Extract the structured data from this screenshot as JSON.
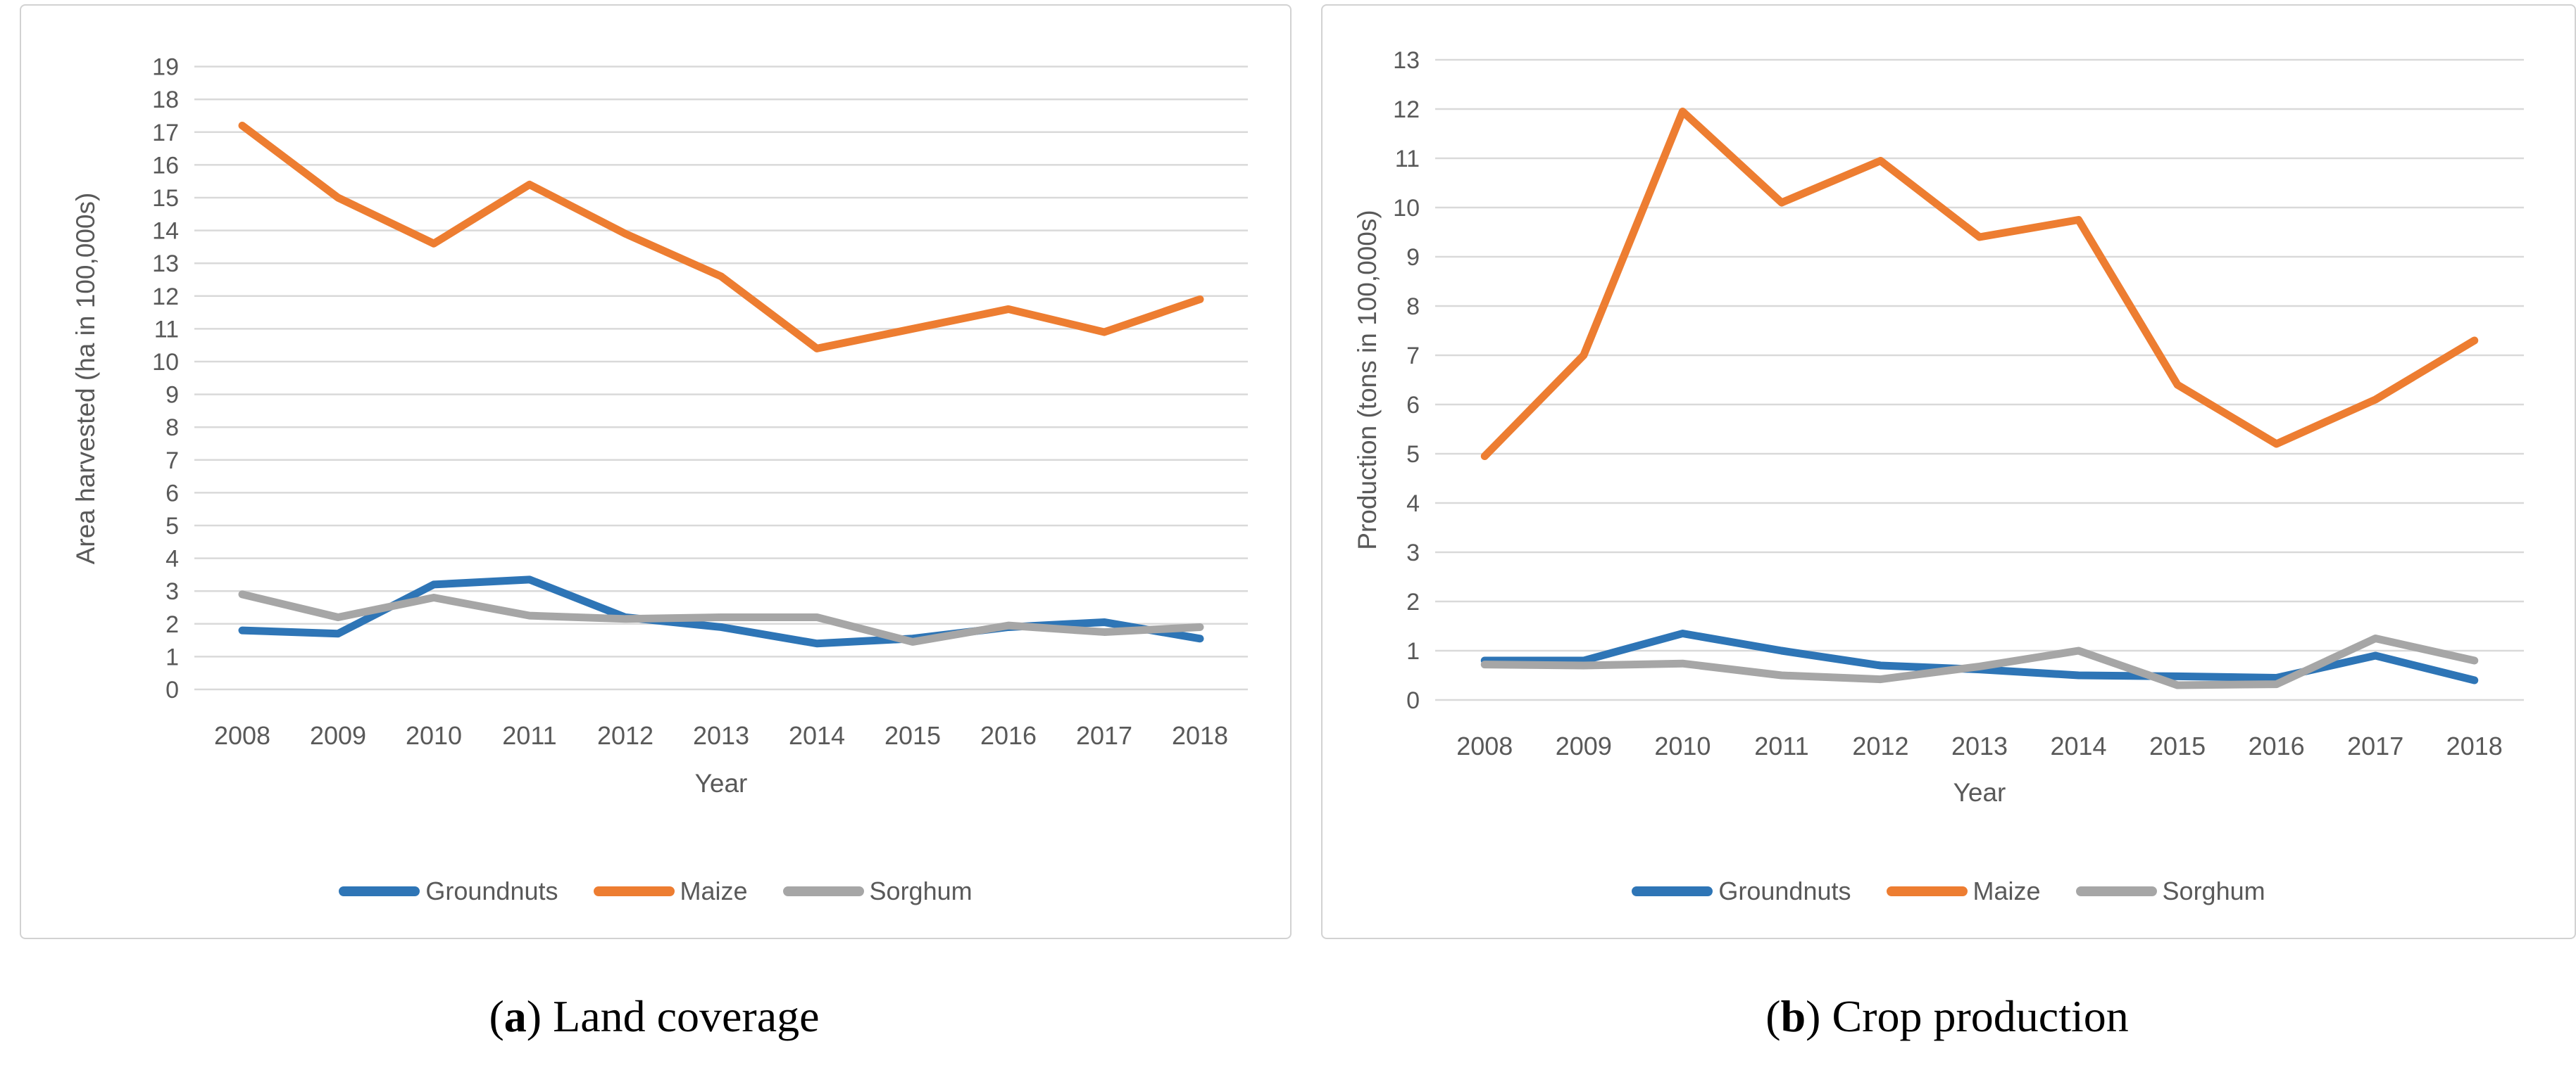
{
  "chart_data": [
    {
      "type": "line",
      "panel": "a",
      "xlabel": "Year",
      "ylabel": "Area harvested (ha in 100,000s)",
      "ylim": [
        0,
        19
      ],
      "ytick_step": 1,
      "grid": "horizontal",
      "legend_position": "bottom",
      "categories": [
        "2008",
        "2009",
        "2010",
        "2011",
        "2012",
        "2013",
        "2014",
        "2015",
        "2016",
        "2017",
        "2018"
      ],
      "series": [
        {
          "name": "Groundnuts",
          "color": "#2E75B6",
          "values": [
            1.8,
            1.7,
            3.2,
            3.35,
            2.2,
            1.9,
            1.4,
            1.55,
            1.9,
            2.05,
            1.55
          ]
        },
        {
          "name": "Maize",
          "color": "#ED7D31",
          "values": [
            17.2,
            15.0,
            13.6,
            15.4,
            13.9,
            12.6,
            10.4,
            11.0,
            11.6,
            10.9,
            11.9
          ]
        },
        {
          "name": "Sorghum",
          "color": "#A6A6A6",
          "values": [
            2.9,
            2.2,
            2.8,
            2.25,
            2.15,
            2.2,
            2.2,
            1.45,
            1.95,
            1.75,
            1.9
          ]
        }
      ]
    },
    {
      "type": "line",
      "panel": "b",
      "xlabel": "Year",
      "ylabel": "Production (tons in 100,000s)",
      "ylim": [
        0,
        13
      ],
      "ytick_step": 1,
      "grid": "horizontal",
      "legend_position": "bottom",
      "categories": [
        "2008",
        "2009",
        "2010",
        "2011",
        "2012",
        "2013",
        "2014",
        "2015",
        "2016",
        "2017",
        "2018"
      ],
      "series": [
        {
          "name": "Groundnuts",
          "color": "#2E75B6",
          "values": [
            0.8,
            0.8,
            1.35,
            1.0,
            0.7,
            0.62,
            0.5,
            0.48,
            0.45,
            0.9,
            0.4
          ]
        },
        {
          "name": "Maize",
          "color": "#ED7D31",
          "values": [
            4.95,
            7.0,
            11.95,
            10.1,
            10.95,
            9.4,
            9.75,
            6.4,
            5.2,
            6.1,
            7.3
          ]
        },
        {
          "name": "Sorghum",
          "color": "#A6A6A6",
          "values": [
            0.72,
            0.7,
            0.74,
            0.5,
            0.42,
            0.68,
            1.0,
            0.3,
            0.32,
            1.25,
            0.8
          ]
        }
      ]
    }
  ],
  "captions": [
    {
      "open": "(",
      "letter": "a",
      "rest": ") Land coverage"
    },
    {
      "open": "(",
      "letter": "b",
      "rest": ") Crop production"
    }
  ]
}
